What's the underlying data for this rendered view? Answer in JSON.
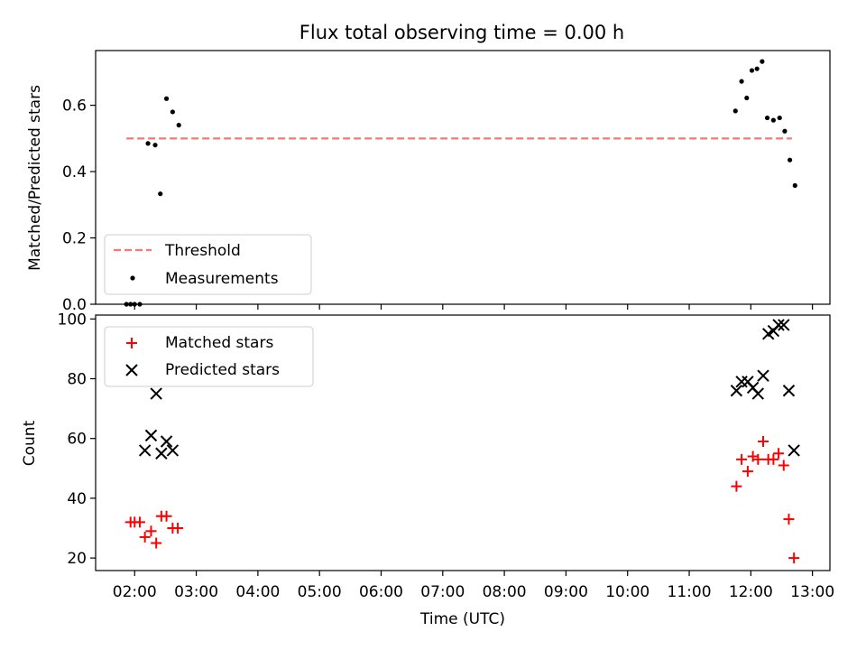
{
  "figure": {
    "title": "Flux total observing time = 0.00 h"
  },
  "chart_data": [
    {
      "type": "scatter",
      "panel": "top",
      "ylabel": "Matched/Predicted stars",
      "xlabel": "",
      "xlim": [
        "01:22",
        "13:17"
      ],
      "ylim": [
        0,
        0.765
      ],
      "yticks": [
        0.0,
        0.2,
        0.4,
        0.6
      ],
      "ytick_labels": [
        "0.0",
        "0.2",
        "0.4",
        "0.6"
      ],
      "grid": false,
      "legend_position": "lower-left",
      "threshold": {
        "name": "Threshold",
        "value": 0.5,
        "x_range": [
          "01:52",
          "12:40"
        ],
        "color": "#f77777",
        "style": "dashed"
      },
      "series": [
        {
          "name": "Measurements",
          "color": "#000000",
          "marker": "dot",
          "x": [
            "01:52",
            "01:56",
            "02:00",
            "02:05",
            "02:13",
            "02:20",
            "02:25",
            "02:31",
            "02:37",
            "02:43",
            "11:45",
            "11:51",
            "11:56",
            "12:01",
            "12:06",
            "12:11",
            "12:16",
            "12:22",
            "12:28",
            "12:33",
            "12:38",
            "12:43"
          ],
          "y": [
            0.0,
            0.0,
            0.0,
            0.0,
            0.485,
            0.48,
            0.333,
            0.62,
            0.58,
            0.54,
            0.583,
            0.672,
            0.622,
            0.705,
            0.71,
            0.732,
            0.562,
            0.555,
            0.562,
            0.522,
            0.435,
            0.358
          ]
        }
      ]
    },
    {
      "type": "scatter",
      "panel": "bottom",
      "ylabel": "Count",
      "xlabel": "Time (UTC)",
      "xlim": [
        "01:22",
        "13:17"
      ],
      "ylim": [
        15.8,
        101.3
      ],
      "yticks": [
        20,
        40,
        60,
        80,
        100
      ],
      "xticks": [
        "02:00",
        "03:00",
        "04:00",
        "05:00",
        "06:00",
        "07:00",
        "08:00",
        "09:00",
        "10:00",
        "11:00",
        "12:00",
        "13:00"
      ],
      "grid": false,
      "legend_position": "upper-left",
      "series": [
        {
          "name": "Matched stars",
          "color": "#ff0000",
          "marker": "plus",
          "x": [
            "01:56",
            "02:00",
            "02:05",
            "02:10",
            "02:16",
            "02:21",
            "02:26",
            "02:31",
            "02:37",
            "02:42",
            "11:46",
            "11:51",
            "11:57",
            "12:02",
            "12:07",
            "12:12",
            "12:17",
            "12:22",
            "12:27",
            "12:32",
            "12:37",
            "12:42"
          ],
          "y": [
            32,
            32,
            32,
            27,
            29,
            25,
            34,
            34,
            30,
            30,
            44,
            53,
            49,
            54,
            53,
            59,
            53,
            53,
            55,
            51,
            33,
            20
          ]
        },
        {
          "name": "Predicted stars",
          "color": "#000000",
          "marker": "x",
          "x": [
            "02:10",
            "02:16",
            "02:21",
            "02:26",
            "02:31",
            "02:37",
            "11:46",
            "11:51",
            "11:57",
            "12:02",
            "12:07",
            "12:12",
            "12:17",
            "12:22",
            "12:27",
            "12:32",
            "12:37",
            "12:42"
          ],
          "y": [
            56,
            61,
            75,
            55,
            59,
            56,
            76,
            79,
            79,
            77,
            75,
            81,
            95,
            96,
            98,
            98,
            76,
            56
          ]
        }
      ]
    }
  ]
}
